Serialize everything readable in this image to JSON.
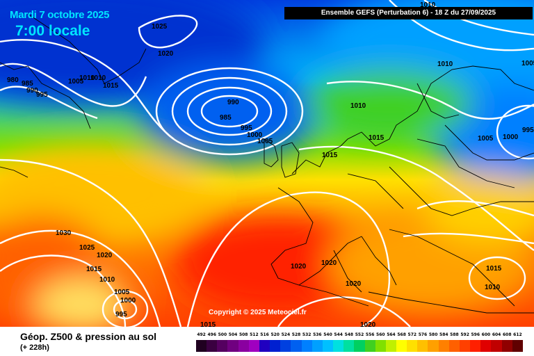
{
  "header": {
    "date": "Mardi 7 octobre 2025",
    "time": "7:00 locale",
    "run": "Ensemble GEFS (Perturbation 6) - 18 Z du 27/09/2025"
  },
  "copyright": "Copyright © 2025 Meteociel.fr",
  "legend": {
    "title": "Géop. Z500 & pression au sol",
    "subtitle": "(+ 228h)",
    "scale_values": [
      "492",
      "496",
      "500",
      "504",
      "508",
      "512",
      "516",
      "520",
      "524",
      "528",
      "532",
      "536",
      "540",
      "544",
      "548",
      "552",
      "556",
      "560",
      "564",
      "568",
      "572",
      "576",
      "580",
      "584",
      "588",
      "592",
      "596",
      "600",
      "604",
      "608",
      "612"
    ],
    "scale_colors": [
      "#200020",
      "#3a0040",
      "#550060",
      "#700080",
      "#8a00a0",
      "#a000c0",
      "#2000c0",
      "#0020d0",
      "#0040e0",
      "#0060f0",
      "#0080ff",
      "#00a0ff",
      "#00c0ff",
      "#00e0e0",
      "#00e0a0",
      "#00d060",
      "#40d020",
      "#80e000",
      "#c0f000",
      "#ffff00",
      "#ffe000",
      "#ffc000",
      "#ffa000",
      "#ff8000",
      "#ff6000",
      "#ff4000",
      "#ff2000",
      "#e00000",
      "#c00000",
      "#900000",
      "#600000"
    ]
  },
  "pressure_labels": [
    "1025",
    "1020",
    "980",
    "985",
    "990",
    "995",
    "1005",
    "1010",
    "1010",
    "1015",
    "990",
    "985",
    "995",
    "1000",
    "1005",
    "1010",
    "1015",
    "1015",
    "1010",
    "1005",
    "1000",
    "995",
    "1005",
    "1030",
    "1025",
    "1020",
    "1015",
    "1010",
    "1005",
    "1000",
    "995",
    "1020",
    "1020",
    "1020",
    "1015",
    "1010",
    "1015",
    "1020",
    "1010",
    "1000"
  ]
}
